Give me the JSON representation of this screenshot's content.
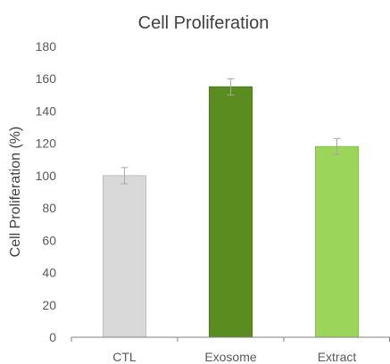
{
  "chart_data": {
    "type": "bar",
    "title": "Cell Proliferation",
    "xlabel": "",
    "ylabel": "Cell Proliferation (%)",
    "ylim": [
      0,
      180
    ],
    "ytick_step": 20,
    "yticks": [
      "0",
      "20",
      "40",
      "60",
      "80",
      "100",
      "120",
      "140",
      "160",
      "180"
    ],
    "categories": [
      "CTL",
      "Exosome",
      "Extract"
    ],
    "values": [
      100,
      155,
      118
    ],
    "errors": [
      5,
      5,
      5
    ],
    "colors": [
      "#d9d9d9",
      "#5b8c1f",
      "#9bd65a"
    ],
    "bar_edge_colors": [
      "#bfbfbf",
      "#4e7a19",
      "#86c24a"
    ],
    "error_bar_color": "#a6a6a6",
    "axis_color": "#808080",
    "grid": false,
    "legend": false
  }
}
